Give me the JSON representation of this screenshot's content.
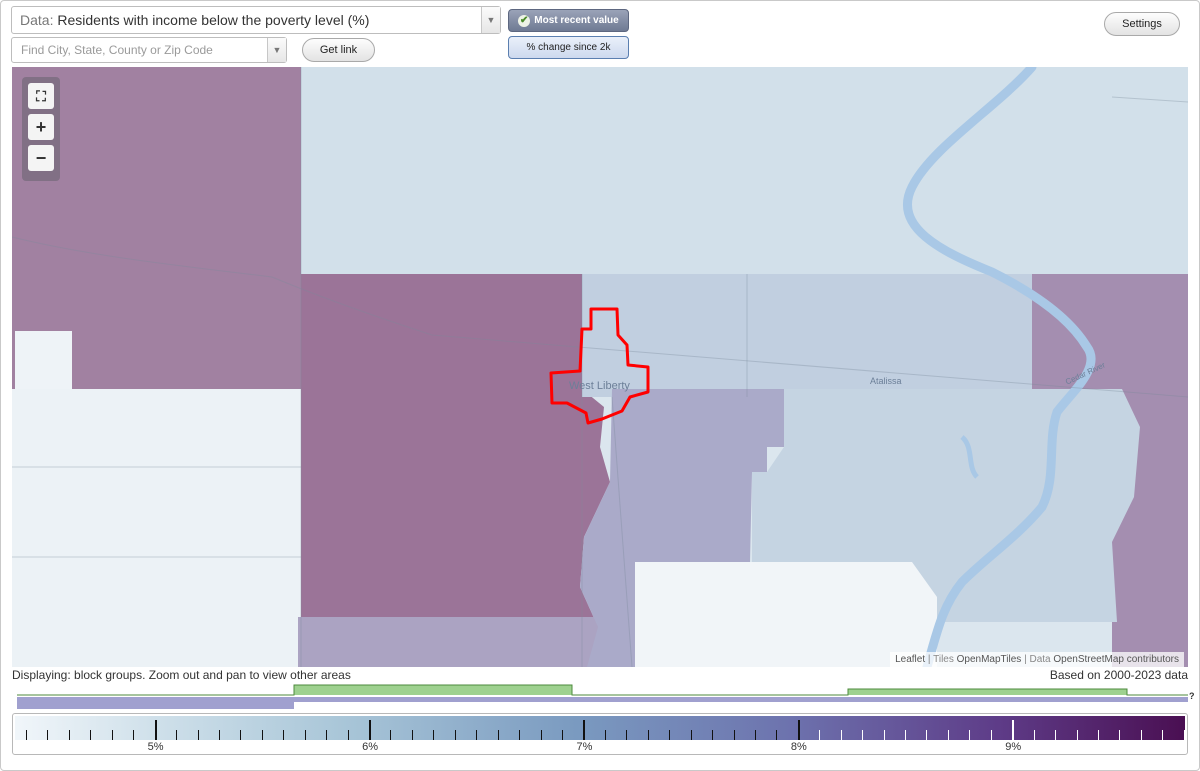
{
  "data_selector": {
    "prefix": "Data:",
    "value": "Residents with income below the poverty level (%)"
  },
  "search": {
    "placeholder": "Find City, State, County or Zip Code"
  },
  "buttons": {
    "get_link": "Get link",
    "settings": "Settings",
    "most_recent": "Most recent value",
    "pct_change": "% change since 2k"
  },
  "map": {
    "labels": {
      "west_liberty": "West Liberty",
      "atalissa": "Atalissa",
      "cedar_river": "Cedar River"
    },
    "attribution": {
      "leaflet": "Leaflet",
      "tiles_prefix": "Tiles",
      "tiles": "OpenMapTiles",
      "data_prefix": "Data",
      "data": "OpenStreetMap contributors"
    },
    "zoom": {
      "fit": "⛶",
      "in": "+",
      "out": "−"
    },
    "highlight_color": "#ff0000",
    "colors": {
      "dark": "#9e7b9c",
      "mid": "#a9a9c8",
      "light": "#c7d6e3",
      "lightest": "#eef3f7",
      "river": "#a9c8e6"
    }
  },
  "status": {
    "displaying": "Displaying: block groups. Zoom out and pan to view other areas",
    "based_on": "Based on 2000-2023 data"
  },
  "histogram_unknown": "?",
  "legend": {
    "labels": [
      "5%",
      "6%",
      "7%",
      "8%",
      "9%"
    ],
    "ramp_start": "#f1f6fa",
    "ramp_end": "#4a0f52"
  }
}
